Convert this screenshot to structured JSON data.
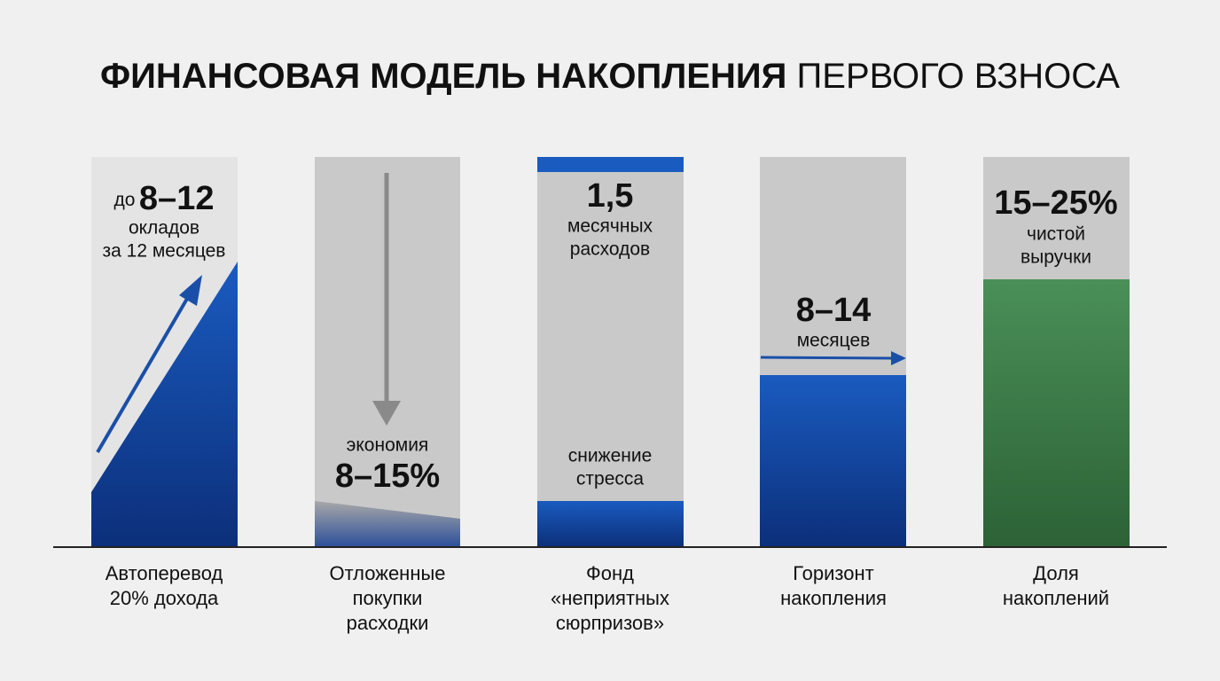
{
  "title": {
    "bold": "ФИНАНСОВАЯ МОДЕЛЬ НАКОПЛЕНИЯ",
    "regular": "ПЕРВОГО ВЗНОСА"
  },
  "panels": [
    {
      "prefix": "до",
      "value": "8–12",
      "note": [
        "окладов",
        "за 12 месяцев"
      ],
      "label": [
        "Автоперевод",
        "20% дохода"
      ]
    },
    {
      "note": [
        "экономия"
      ],
      "value": "8–15%",
      "label": [
        "Отложенные",
        "покупки",
        "расходки"
      ]
    },
    {
      "value": "1,5",
      "note": [
        "месячных",
        "расходов"
      ],
      "footnote": [
        "снижение",
        "стресса"
      ],
      "label": [
        "Фонд",
        "«неприятных",
        "сюрпризов»"
      ]
    },
    {
      "value": "8–14",
      "note": [
        "месяцев"
      ],
      "label": [
        "Горизонт",
        "накопления"
      ]
    },
    {
      "value": "15–25%",
      "note": [
        "чистой",
        "выручки"
      ],
      "label": [
        "Доля",
        "накоплений"
      ]
    }
  ]
}
